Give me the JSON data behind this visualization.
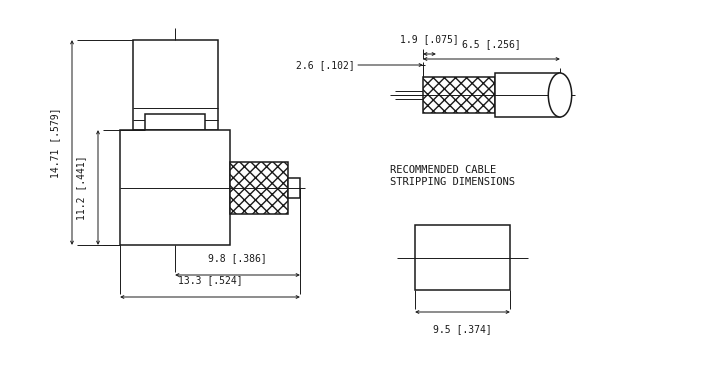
{
  "bg_color": "#ffffff",
  "line_color": "#1a1a1a",
  "font_size_dim": 7.0,
  "font_size_label": 7.5,
  "dimensions": {
    "height_1471": "14.71 [.579]",
    "height_112": "11.2 [.441]",
    "width_98": "9.8 [.386]",
    "width_133": "13.3 [.524]",
    "strip_26": "2.6 [.102]",
    "strip_19": "1.9 [.075]",
    "strip_65": "6.5 [.256]",
    "end_95": "9.5 [.374]"
  },
  "label_rec": "RECOMMENDED CABLE\nSTRIPPING DIMENSIONS"
}
